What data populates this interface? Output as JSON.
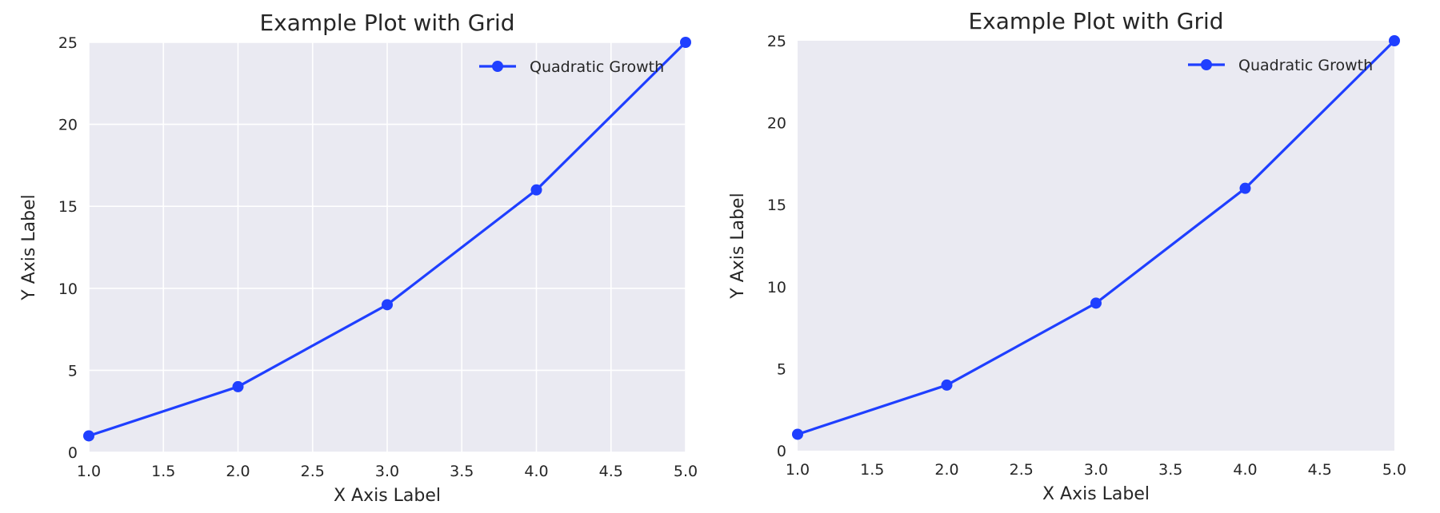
{
  "colors": {
    "axes_background": "#eaeaf2",
    "grid": "#ffffff",
    "series": "#1f3fff",
    "text": "#262626"
  },
  "chart_data": [
    {
      "type": "line",
      "title": "Example Plot with Grid",
      "xlabel": "X Axis Label",
      "ylabel": "Y Axis Label",
      "xlim": [
        1.0,
        5.0
      ],
      "ylim": [
        0,
        25
      ],
      "xticks": [
        "1.0",
        "1.5",
        "2.0",
        "2.5",
        "3.0",
        "3.5",
        "4.0",
        "4.5",
        "5.0"
      ],
      "yticks": [
        "0",
        "5",
        "10",
        "15",
        "20",
        "25"
      ],
      "grid": true,
      "legend_position": "top-right",
      "series": [
        {
          "name": "Quadratic Growth",
          "x": [
            1,
            2,
            3,
            4,
            5
          ],
          "y": [
            1,
            4,
            9,
            16,
            25
          ],
          "marker": "circle"
        }
      ]
    },
    {
      "type": "line",
      "title": "Example Plot with Grid",
      "xlabel": "X Axis Label",
      "ylabel": "Y Axis Label",
      "xlim": [
        1.0,
        5.0
      ],
      "ylim": [
        0,
        25
      ],
      "xticks": [
        "1.0",
        "1.5",
        "2.0",
        "2.5",
        "3.0",
        "3.5",
        "4.0",
        "4.5",
        "5.0"
      ],
      "yticks": [
        "0",
        "5",
        "10",
        "15",
        "20",
        "25"
      ],
      "grid": false,
      "legend_position": "top-right",
      "series": [
        {
          "name": "Quadratic Growth",
          "x": [
            1,
            2,
            3,
            4,
            5
          ],
          "y": [
            1,
            4,
            9,
            16,
            25
          ],
          "marker": "circle"
        }
      ]
    }
  ]
}
